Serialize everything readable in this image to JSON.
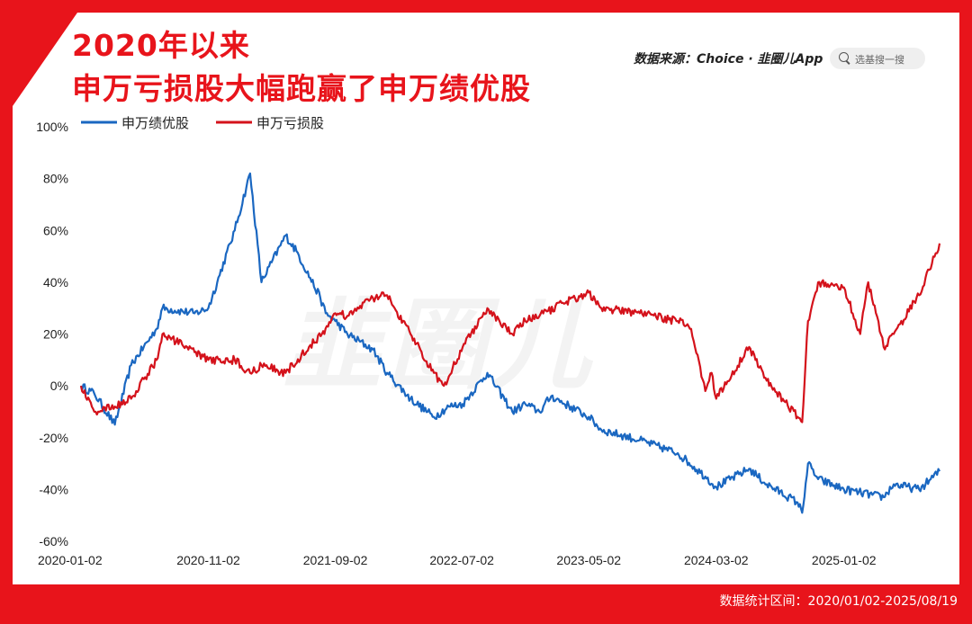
{
  "header": {
    "title_line1": "2020年以来",
    "title_line2": "申万亏损股大幅跑赢了申万绩优股",
    "source_text": "数据来源：Choice · 韭圈儿App",
    "search_placeholder": "选基搜一搜"
  },
  "watermark": "韭圈儿",
  "footer": {
    "text": "数据统计区间：2020/01/02-2025/08/19"
  },
  "colors": {
    "frame": "#e8141b",
    "series_blue": "#1a67c1",
    "series_red": "#d4121b"
  },
  "chart_data": {
    "type": "line",
    "ylim": [
      -60,
      100
    ],
    "yticks": [
      100,
      80,
      60,
      40,
      20,
      0,
      -20,
      -40,
      -60
    ],
    "ytick_labels": [
      "100%",
      "80%",
      "60%",
      "40%",
      "20%",
      "0%",
      "-20%",
      "-40%",
      "-60%"
    ],
    "xlim": [
      "2020-01-02",
      "2025-08-19"
    ],
    "xticks": [
      "2020-01-02",
      "2020-11-02",
      "2021-09-02",
      "2022-07-02",
      "2023-05-02",
      "2024-03-02",
      "2025-01-02"
    ],
    "legend_position": "top-left",
    "series": [
      {
        "name": "申万绩优股",
        "color": "#1a67c1",
        "x": [
          "2020-01-02",
          "2020-02-03",
          "2020-03-23",
          "2020-05-01",
          "2020-07-01",
          "2020-07-15",
          "2020-09-30",
          "2020-11-02",
          "2021-01-04",
          "2021-02-10",
          "2021-03-09",
          "2021-05-06",
          "2021-06-01",
          "2021-07-28",
          "2021-08-10",
          "2021-09-02",
          "2021-10-01",
          "2021-12-01",
          "2022-01-04",
          "2022-03-01",
          "2022-04-26",
          "2022-06-01",
          "2022-07-04",
          "2022-09-01",
          "2022-10-31",
          "2022-12-01",
          "2023-01-04",
          "2023-02-01",
          "2023-05-02",
          "2023-06-01",
          "2023-09-01",
          "2023-12-01",
          "2024-02-05",
          "2024-03-02",
          "2024-05-20",
          "2024-07-01",
          "2024-09-13",
          "2024-09-24",
          "2024-10-08",
          "2024-11-01",
          "2025-01-02",
          "2025-04-07",
          "2025-05-01",
          "2025-07-01",
          "2025-08-19"
        ],
        "values": [
          0,
          -3,
          -15,
          8,
          22,
          30,
          28,
          30,
          60,
          82,
          40,
          58,
          52,
          34,
          28,
          25,
          20,
          14,
          5,
          -5,
          -12,
          -8,
          -7,
          5,
          -10,
          -7,
          -10,
          -4,
          -12,
          -17,
          -21,
          -26,
          -35,
          -39,
          -32,
          -38,
          -45,
          -49,
          -30,
          -36,
          -40,
          -43,
          -38,
          -40,
          -33
        ]
      },
      {
        "name": "申万亏损股",
        "color": "#d4121b",
        "x": [
          "2020-01-02",
          "2020-02-03",
          "2020-03-23",
          "2020-05-01",
          "2020-07-01",
          "2020-07-15",
          "2020-09-30",
          "2020-11-02",
          "2021-01-04",
          "2021-02-10",
          "2021-03-09",
          "2021-05-06",
          "2021-07-01",
          "2021-08-01",
          "2021-09-02",
          "2021-10-01",
          "2021-12-01",
          "2022-01-04",
          "2022-03-01",
          "2022-04-26",
          "2022-05-20",
          "2022-07-04",
          "2022-09-01",
          "2022-10-31",
          "2022-12-01",
          "2023-01-04",
          "2023-03-01",
          "2023-05-02",
          "2023-06-01",
          "2023-09-01",
          "2023-12-01",
          "2024-01-02",
          "2024-02-05",
          "2024-02-20",
          "2024-03-02",
          "2024-05-20",
          "2024-07-01",
          "2024-09-13",
          "2024-09-24",
          "2024-10-08",
          "2024-11-01",
          "2025-01-02",
          "2025-02-10",
          "2025-03-01",
          "2025-04-07",
          "2025-05-01",
          "2025-07-01",
          "2025-08-19"
        ],
        "values": [
          0,
          -10,
          -8,
          -5,
          10,
          20,
          13,
          10,
          10,
          5,
          8,
          5,
          15,
          20,
          28,
          27,
          34,
          35,
          20,
          5,
          0,
          15,
          30,
          20,
          25,
          27,
          32,
          36,
          30,
          28,
          25,
          22,
          -2,
          5,
          -5,
          15,
          2,
          -12,
          -14,
          25,
          40,
          38,
          20,
          40,
          15,
          20,
          35,
          55
        ]
      }
    ]
  }
}
